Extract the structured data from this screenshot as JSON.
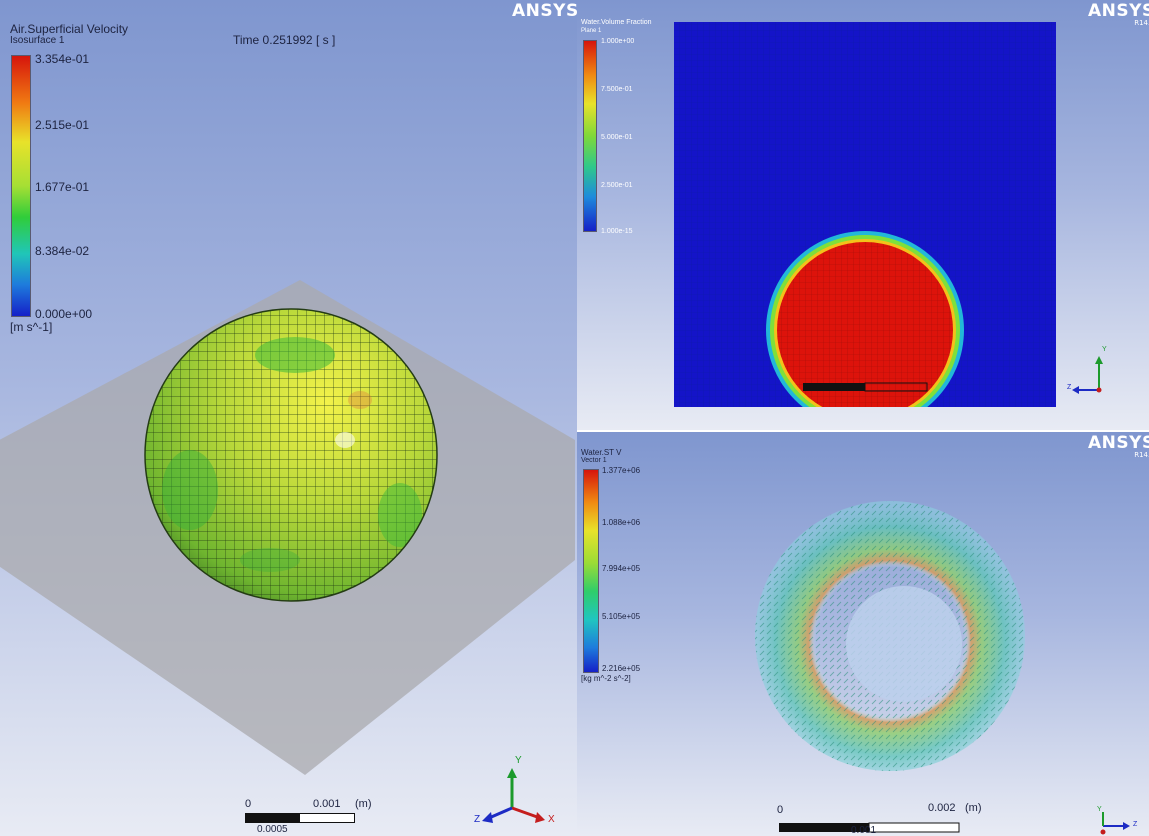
{
  "left_view": {
    "legend": {
      "title": "Air.Superficial Velocity",
      "subtitle": "Isosurface 1",
      "ticks": [
        "3.354e-01",
        "2.515e-01",
        "1.677e-01",
        "8.384e-02",
        "0.000e+00"
      ],
      "unit": "[m s^-1]"
    },
    "time": "Time 0.251992 [ s ]",
    "logo": "ANSYS",
    "scale": {
      "zero": "0",
      "max": "0.001",
      "unit": "(m)",
      "mid": "0.0005"
    },
    "axes": {
      "y": "Y",
      "z": "Z",
      "x": "X"
    }
  },
  "top_right_view": {
    "legend": {
      "title": "Water.Volume Fraction",
      "subtitle": "Plane 1",
      "ticks": [
        "1.000e+00",
        "7.500e-01",
        "5.000e-01",
        "2.500e-01",
        "1.000e-15"
      ]
    },
    "logo": "ANSYS",
    "logo_release": "R14.5",
    "axes": {
      "y": "Y",
      "z": "Z"
    }
  },
  "bottom_right_view": {
    "legend": {
      "title": "Water.ST V",
      "subtitle": "Vector 1",
      "ticks": [
        "1.377e+06",
        "1.088e+06",
        "7.994e+05",
        "5.105e+05",
        "2.216e+05"
      ],
      "unit": "[kg m^-2 s^-2]"
    },
    "logo": "ANSYS",
    "logo_release": "R14.5",
    "scale": {
      "zero": "0",
      "max": "0.002",
      "unit": "(m)",
      "mid": "0.001"
    },
    "axes": {
      "y": "Y",
      "z": "Z"
    }
  },
  "colors": {
    "map_low": "#1a1ad6",
    "map_mid": "#2fd02f",
    "map_high": "#e0120a",
    "background_top": "#7f96cf",
    "background_bottom": "#e8ebf4"
  }
}
